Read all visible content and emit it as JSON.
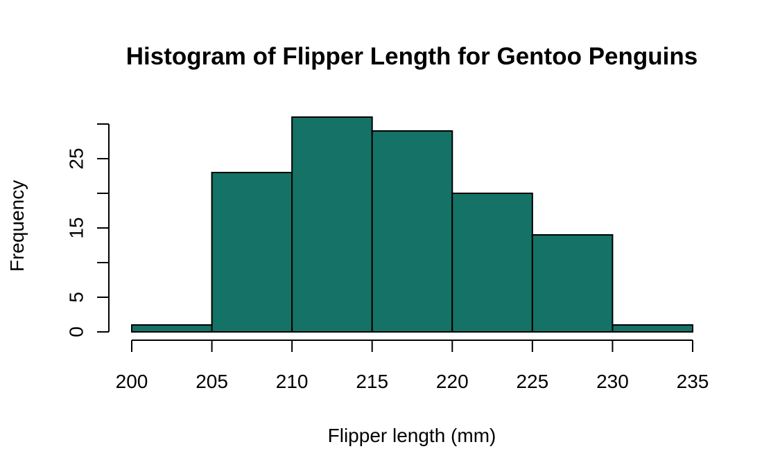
{
  "chart_data": {
    "type": "bar",
    "subtype": "histogram",
    "title": "Histogram of Flipper Length for Gentoo Penguins",
    "xlabel": "Flipper length (mm)",
    "ylabel": "Frequency",
    "bins": [
      {
        "from": 200,
        "to": 205,
        "count": 1
      },
      {
        "from": 205,
        "to": 210,
        "count": 23
      },
      {
        "from": 210,
        "to": 215,
        "count": 31
      },
      {
        "from": 215,
        "to": 220,
        "count": 29
      },
      {
        "from": 220,
        "to": 225,
        "count": 20
      },
      {
        "from": 225,
        "to": 230,
        "count": 14
      },
      {
        "from": 230,
        "to": 235,
        "count": 1
      }
    ],
    "xlim": [
      200,
      235
    ],
    "ylim": [
      0,
      30
    ],
    "x_ticks": [
      200,
      205,
      210,
      215,
      220,
      225,
      230,
      235
    ],
    "y_ticks": [
      0,
      5,
      10,
      15,
      20,
      25,
      30
    ],
    "y_tick_labels": [
      "0",
      "5",
      "",
      "15",
      "",
      "25",
      ""
    ],
    "bar_color": "#147266",
    "grid": false,
    "legend": "none"
  }
}
